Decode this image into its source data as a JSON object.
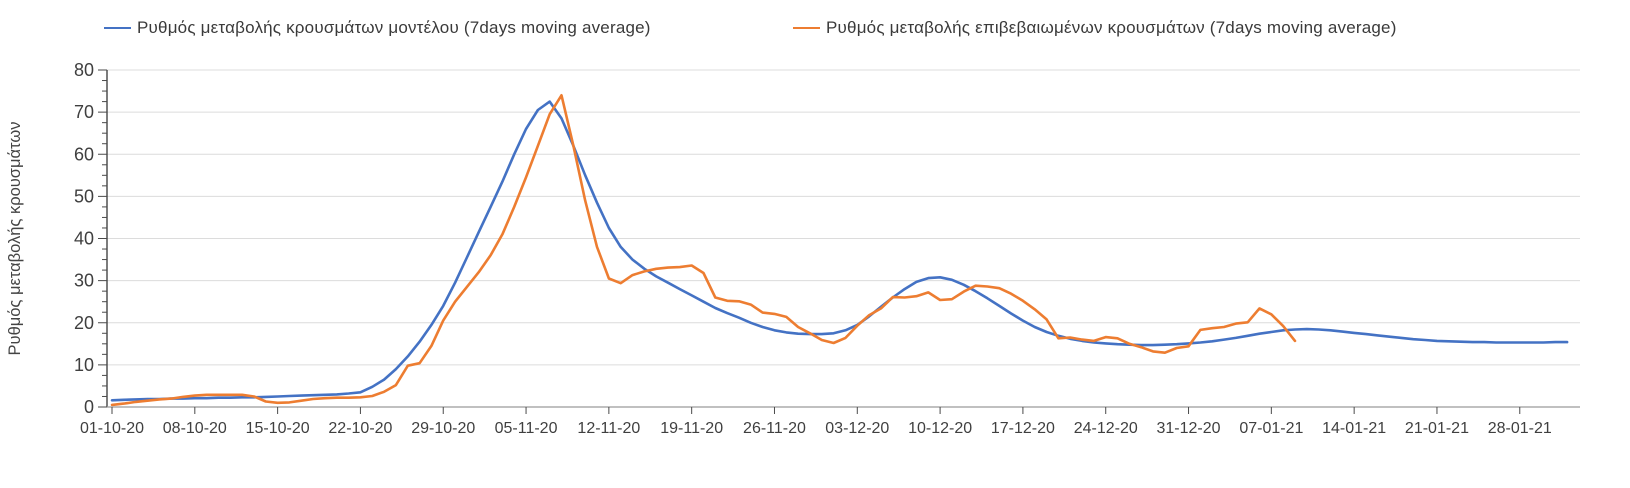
{
  "chart_data": {
    "type": "line",
    "title": "",
    "xlabel": "",
    "ylabel": "Ρυθμός μεταβολής κρουσμάτων",
    "ylim": [
      0,
      80
    ],
    "y_ticks": [
      0,
      10,
      20,
      30,
      40,
      50,
      60,
      70,
      80
    ],
    "y_minor_tick_step": 2.5,
    "grid": "horizontal-only",
    "legend_position": "top",
    "x_start_date": "01-10-20",
    "x_tick_interval_days": 7,
    "x_tick_labels": [
      "01-10-20",
      "08-10-20",
      "15-10-20",
      "22-10-20",
      "29-10-20",
      "05-11-20",
      "12-11-20",
      "19-11-20",
      "26-11-20",
      "03-12-20",
      "10-12-20",
      "17-12-20",
      "24-12-20",
      "31-12-20",
      "07-01-21",
      "14-01-21",
      "21-01-21",
      "28-01-21"
    ],
    "colors": {
      "model_line": "#4472c4",
      "confirmed_line": "#ed7d31",
      "gridline": "#dcdcdc",
      "y_axis": "#262626",
      "x_axis": "#9b9b9b",
      "tick": "#4a4a4a",
      "label_text": "#3f3f3f"
    },
    "series": [
      {
        "name": "Ρυθμός μεταβολής κρουσμάτων μοντέλου (7days moving average)",
        "color_key": "model_line",
        "values": [
          1.6,
          1.7,
          1.8,
          1.9,
          1.9,
          2.0,
          2.0,
          2.1,
          2.1,
          2.2,
          2.2,
          2.3,
          2.3,
          2.4,
          2.5,
          2.6,
          2.7,
          2.8,
          2.9,
          3.0,
          3.2,
          3.5,
          4.8,
          6.5,
          9.0,
          12.0,
          15.5,
          19.5,
          24.0,
          29.5,
          35.5,
          41.5,
          47.5,
          53.5,
          60.0,
          66.0,
          70.5,
          72.5,
          68.5,
          62.0,
          55.0,
          48.5,
          42.5,
          38.0,
          35.0,
          32.8,
          31.0,
          29.5,
          28.0,
          26.5,
          25.0,
          23.5,
          22.3,
          21.2,
          20.0,
          19.0,
          18.2,
          17.7,
          17.4,
          17.3,
          17.3,
          17.5,
          18.2,
          19.5,
          21.5,
          23.8,
          26.0,
          28.0,
          29.7,
          30.6,
          30.8,
          30.2,
          29.0,
          27.5,
          25.8,
          24.0,
          22.2,
          20.5,
          19.0,
          17.8,
          16.9,
          16.2,
          15.7,
          15.3,
          15.1,
          14.9,
          14.8,
          14.7,
          14.7,
          14.8,
          14.9,
          15.1,
          15.3,
          15.6,
          16.0,
          16.4,
          16.9,
          17.4,
          17.8,
          18.2,
          18.4,
          18.5,
          18.4,
          18.2,
          17.9,
          17.6,
          17.3,
          17.0,
          16.7,
          16.4,
          16.1,
          15.9,
          15.7,
          15.6,
          15.5,
          15.4,
          15.4,
          15.3,
          15.3,
          15.3,
          15.3,
          15.3,
          15.4,
          15.4
        ]
      },
      {
        "name": "Ρυθμός μεταβολής επιβεβαιωμένων κρουσμάτων (7days moving average)",
        "color_key": "confirmed_line",
        "values": [
          0.5,
          0.8,
          1.2,
          1.5,
          1.8,
          2.0,
          2.4,
          2.7,
          2.9,
          2.9,
          2.9,
          2.9,
          2.5,
          1.3,
          1.0,
          1.1,
          1.5,
          1.9,
          2.1,
          2.2,
          2.2,
          2.3,
          2.6,
          3.6,
          5.2,
          9.8,
          10.4,
          14.5,
          20.5,
          25.0,
          28.5,
          32.0,
          36.0,
          41.0,
          47.5,
          54.5,
          62.0,
          69.5,
          74.0,
          62.0,
          49.0,
          38.0,
          30.5,
          29.4,
          31.3,
          32.2,
          32.8,
          33.1,
          33.2,
          33.6,
          31.8,
          26.0,
          25.2,
          25.1,
          24.3,
          22.4,
          22.1,
          21.4,
          19.0,
          17.5,
          15.9,
          15.2,
          16.4,
          19.3,
          21.8,
          23.4,
          26.1,
          26.0,
          26.3,
          27.2,
          25.4,
          25.6,
          27.4,
          28.8,
          28.6,
          28.2,
          26.9,
          25.2,
          23.2,
          20.8,
          16.3,
          16.5,
          16.0,
          15.7,
          16.6,
          16.3,
          15.0,
          14.2,
          13.2,
          12.9,
          14.0,
          14.4,
          18.3,
          18.7,
          19.0,
          19.8,
          20.1,
          23.4,
          22.0,
          19.2,
          15.7
        ]
      }
    ]
  }
}
